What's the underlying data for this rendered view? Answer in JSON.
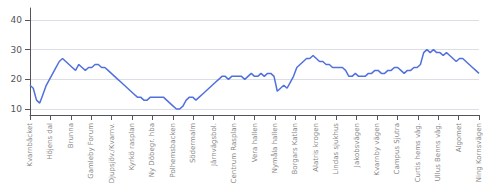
{
  "chart_data": {
    "type": "line",
    "x": [
      0,
      1,
      2,
      3,
      4,
      5,
      6,
      7,
      8,
      9,
      10,
      11,
      12,
      13,
      14,
      15,
      16,
      17,
      18,
      19,
      20,
      21,
      22,
      23,
      24,
      25,
      26,
      27,
      28,
      29,
      30,
      31,
      32,
      33,
      34,
      35,
      36,
      37,
      38,
      39,
      40,
      41,
      42,
      43,
      44,
      45,
      46,
      47,
      48,
      49,
      50,
      51,
      52,
      53,
      54,
      55,
      56,
      57,
      58,
      59,
      60,
      61,
      62,
      63,
      64,
      65,
      66,
      67,
      68,
      69,
      70,
      71,
      72,
      73,
      74,
      75,
      76,
      77,
      78,
      79,
      80,
      81,
      82,
      83,
      84,
      85,
      86,
      87,
      88,
      89,
      90,
      91,
      92,
      93,
      94,
      95,
      96,
      97,
      98,
      99,
      100,
      101,
      102,
      103,
      104,
      105,
      106,
      107,
      108,
      109,
      110,
      111,
      112,
      113,
      114,
      115,
      116,
      117,
      118,
      119,
      120,
      121,
      122,
      123,
      124,
      125,
      126,
      127,
      128,
      129,
      130,
      131,
      132,
      133,
      134,
      135,
      136,
      137,
      138
    ],
    "values": [
      18,
      17,
      13,
      12,
      15,
      18,
      20,
      22,
      24,
      26,
      27,
      26,
      25,
      24,
      23,
      25,
      24,
      23,
      24,
      24,
      25,
      25,
      24,
      24,
      23,
      22,
      21,
      20,
      19,
      18,
      17,
      16,
      15,
      14,
      14,
      13,
      13,
      14,
      14,
      14,
      14,
      14,
      13,
      12,
      11,
      10,
      10,
      11,
      13,
      14,
      14,
      13,
      14,
      15,
      16,
      17,
      18,
      19,
      20,
      21,
      21,
      20,
      21,
      21,
      21,
      21,
      20,
      21,
      22,
      21,
      21,
      22,
      21,
      22,
      22,
      21,
      16,
      17,
      18,
      17,
      19,
      21,
      24,
      25,
      26,
      27,
      27,
      28,
      27,
      26,
      26,
      25,
      25,
      24,
      24,
      24,
      24,
      23,
      21,
      21,
      22,
      21,
      21,
      21,
      22,
      22,
      23,
      23,
      22,
      22,
      23,
      23,
      24,
      24,
      23,
      22,
      23,
      23,
      24,
      24,
      25,
      29,
      30,
      29,
      30,
      29,
      29,
      28,
      29,
      28,
      27,
      26,
      27,
      27,
      26,
      25,
      24,
      23,
      22
    ],
    "xlim": [
      0,
      138
    ],
    "xticks": [
      {
        "value": 0,
        "label": "Kvarnbäcket"
      },
      {
        "value": 6.2727,
        "label": "Höjens dal"
      },
      {
        "value": 12.5455,
        "label": "Brunna"
      },
      {
        "value": 18.8182,
        "label": "Gamleby Forum"
      },
      {
        "value": 25.0909,
        "label": "Djupsjöv./Kvarnv."
      },
      {
        "value": 31.3636,
        "label": "Kyrkö rasplan"
      },
      {
        "value": 37.6364,
        "label": "Ny Döbegr. hba"
      },
      {
        "value": 43.9091,
        "label": "Polhemsbacken"
      },
      {
        "value": 50.1818,
        "label": "Södermalm"
      },
      {
        "value": 56.4545,
        "label": "Järnvägsbol."
      },
      {
        "value": 62.7273,
        "label": "Centrum Rasplan"
      },
      {
        "value": 69,
        "label": "Vera hallen"
      },
      {
        "value": 75.2727,
        "label": "Nymåla hallen"
      },
      {
        "value": 81.5455,
        "label": "Borgars Katlan"
      },
      {
        "value": 87.8182,
        "label": "Alatris krogen"
      },
      {
        "value": 94.0909,
        "label": "Lindas sjukhus"
      },
      {
        "value": 100.3636,
        "label": "Jakobsvägen"
      },
      {
        "value": 106.6364,
        "label": "Kvarnby vägen"
      },
      {
        "value": 112.9091,
        "label": "Campus Sjutra"
      },
      {
        "value": 119.1818,
        "label": "Curtis hems väg."
      },
      {
        "value": 125.4545,
        "label": "Ullus Benns väg."
      },
      {
        "value": 131.7273,
        "label": "Algomet"
      },
      {
        "value": 138,
        "label": "Ning Kornsvägen"
      }
    ],
    "ylim": [
      8,
      44
    ],
    "yticks": [
      10,
      20,
      30,
      40
    ],
    "grid": true
  }
}
